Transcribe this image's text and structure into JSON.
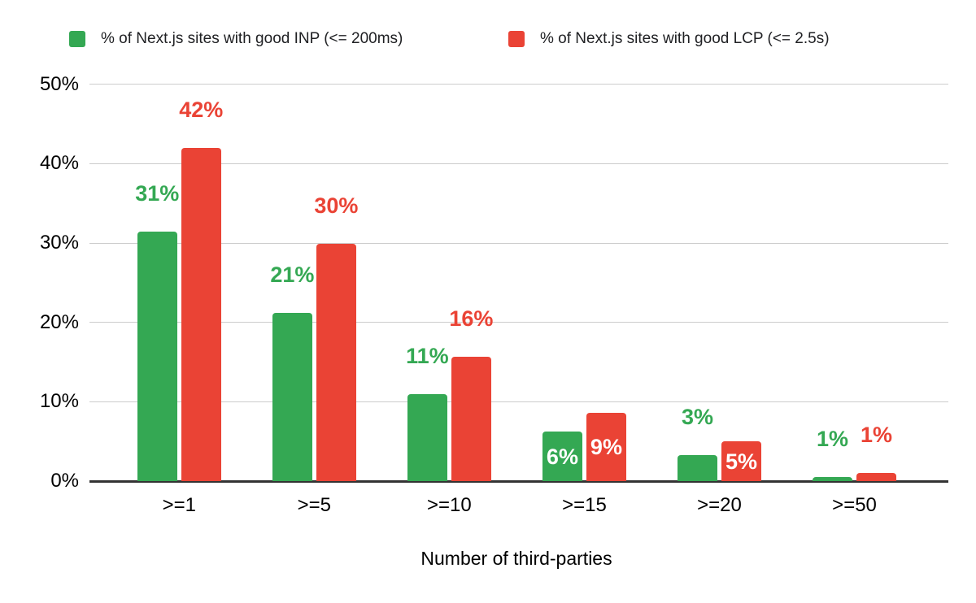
{
  "chart_data": {
    "type": "bar",
    "title": "",
    "xlabel": "Number of third-parties",
    "ylabel": "",
    "categories": [
      ">=1",
      ">=5",
      ">=10",
      ">=15",
      ">=20",
      ">=50"
    ],
    "series": [
      {
        "name": "% of Next.js sites with good INP (<= 200ms)",
        "color": "#34a853",
        "values": [
          31.4,
          21.2,
          11.0,
          6.2,
          3.3,
          0.5
        ],
        "labels": [
          "31%",
          "21%",
          "11%",
          "6%",
          "3%",
          "1%"
        ],
        "label_placement": [
          "above",
          "above",
          "above",
          "inside",
          "above",
          "above"
        ]
      },
      {
        "name": "% of Next.js sites with good LCP (<= 2.5s)",
        "color": "#ea4335",
        "values": [
          42.0,
          29.9,
          15.7,
          8.6,
          5.0,
          1.0
        ],
        "labels": [
          "42%",
          "30%",
          "16%",
          "9%",
          "5%",
          "1%"
        ],
        "label_placement": [
          "above",
          "above",
          "above",
          "inside",
          "inside",
          "above"
        ]
      }
    ],
    "y_ticks": [
      "0%",
      "10%",
      "20%",
      "30%",
      "40%",
      "50%"
    ],
    "ylim": [
      0,
      50
    ],
    "grid": true,
    "legend_position": "top",
    "colors": {
      "grid": "#cccccc",
      "axis_line": "#333333",
      "axis_text": "#000000",
      "legend_text": "#202124",
      "background": "#ffffff",
      "inside_label_text": "#ffffff"
    }
  }
}
